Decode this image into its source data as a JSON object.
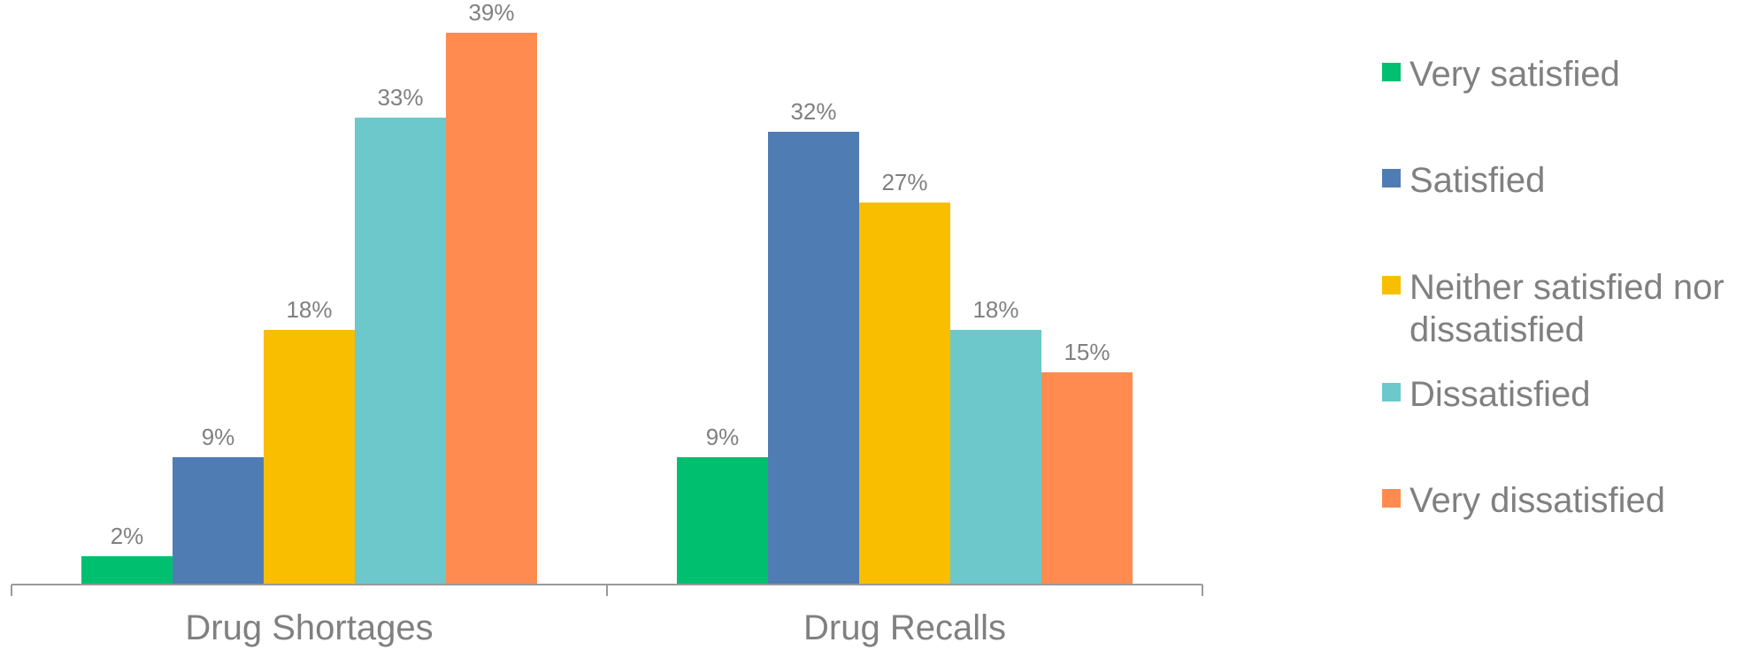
{
  "chart_data": {
    "type": "bar",
    "title": "",
    "xlabel": "",
    "ylabel": "",
    "ylim": [
      0,
      40
    ],
    "grid": false,
    "legend_position": "right",
    "categories": [
      "Drug Shortages",
      "Drug Recalls"
    ],
    "series": [
      {
        "name": "Very satisfied",
        "color": "#00BF6F",
        "values": [
          2,
          9
        ],
        "labels": [
          "2%",
          "9%"
        ]
      },
      {
        "name": "Satisfied",
        "color": "#507CB4",
        "values": [
          9,
          32
        ],
        "labels": [
          "9%",
          "32%"
        ]
      },
      {
        "name": "Neither satisfied nor dissatisfied",
        "color": "#F9BE00",
        "values": [
          18,
          27
        ],
        "labels": [
          "18%",
          "27%"
        ]
      },
      {
        "name": "Dissatisfied",
        "color": "#6CC8CB",
        "values": [
          33,
          18
        ],
        "labels": [
          "33%",
          "18%"
        ]
      },
      {
        "name": "Very dissatisfied",
        "color": "#FF8B50",
        "values": [
          39,
          15
        ],
        "labels": [
          "39%",
          "15%"
        ]
      }
    ]
  }
}
